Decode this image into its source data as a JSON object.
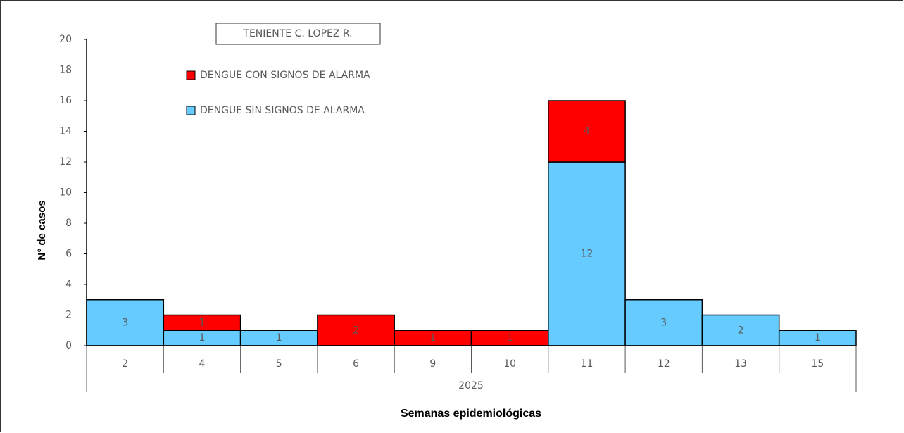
{
  "chart_data": {
    "type": "stacked_bar",
    "title": "TENIENTE C. LOPEZ R.",
    "x_label": "Semanas epidemiológicas",
    "y_label": "N° de casos",
    "group_label": "2025",
    "categories": [
      "2",
      "4",
      "5",
      "6",
      "9",
      "10",
      "11",
      "12",
      "13",
      "15"
    ],
    "series": [
      {
        "name": "DENGUE SIN SIGNOS DE ALARMA",
        "color": "#66ccff",
        "values": [
          3,
          1,
          1,
          null,
          null,
          null,
          12,
          3,
          2,
          1
        ]
      },
      {
        "name": "DENGUE CON SIGNOS DE ALARMA",
        "color": "#ff0000",
        "values": [
          null,
          1,
          null,
          2,
          1,
          1,
          4,
          null,
          null,
          null
        ]
      }
    ],
    "ylim": [
      0,
      20
    ],
    "yticks": [
      0,
      2,
      4,
      6,
      8,
      10,
      12,
      14,
      16,
      18,
      20
    ]
  }
}
